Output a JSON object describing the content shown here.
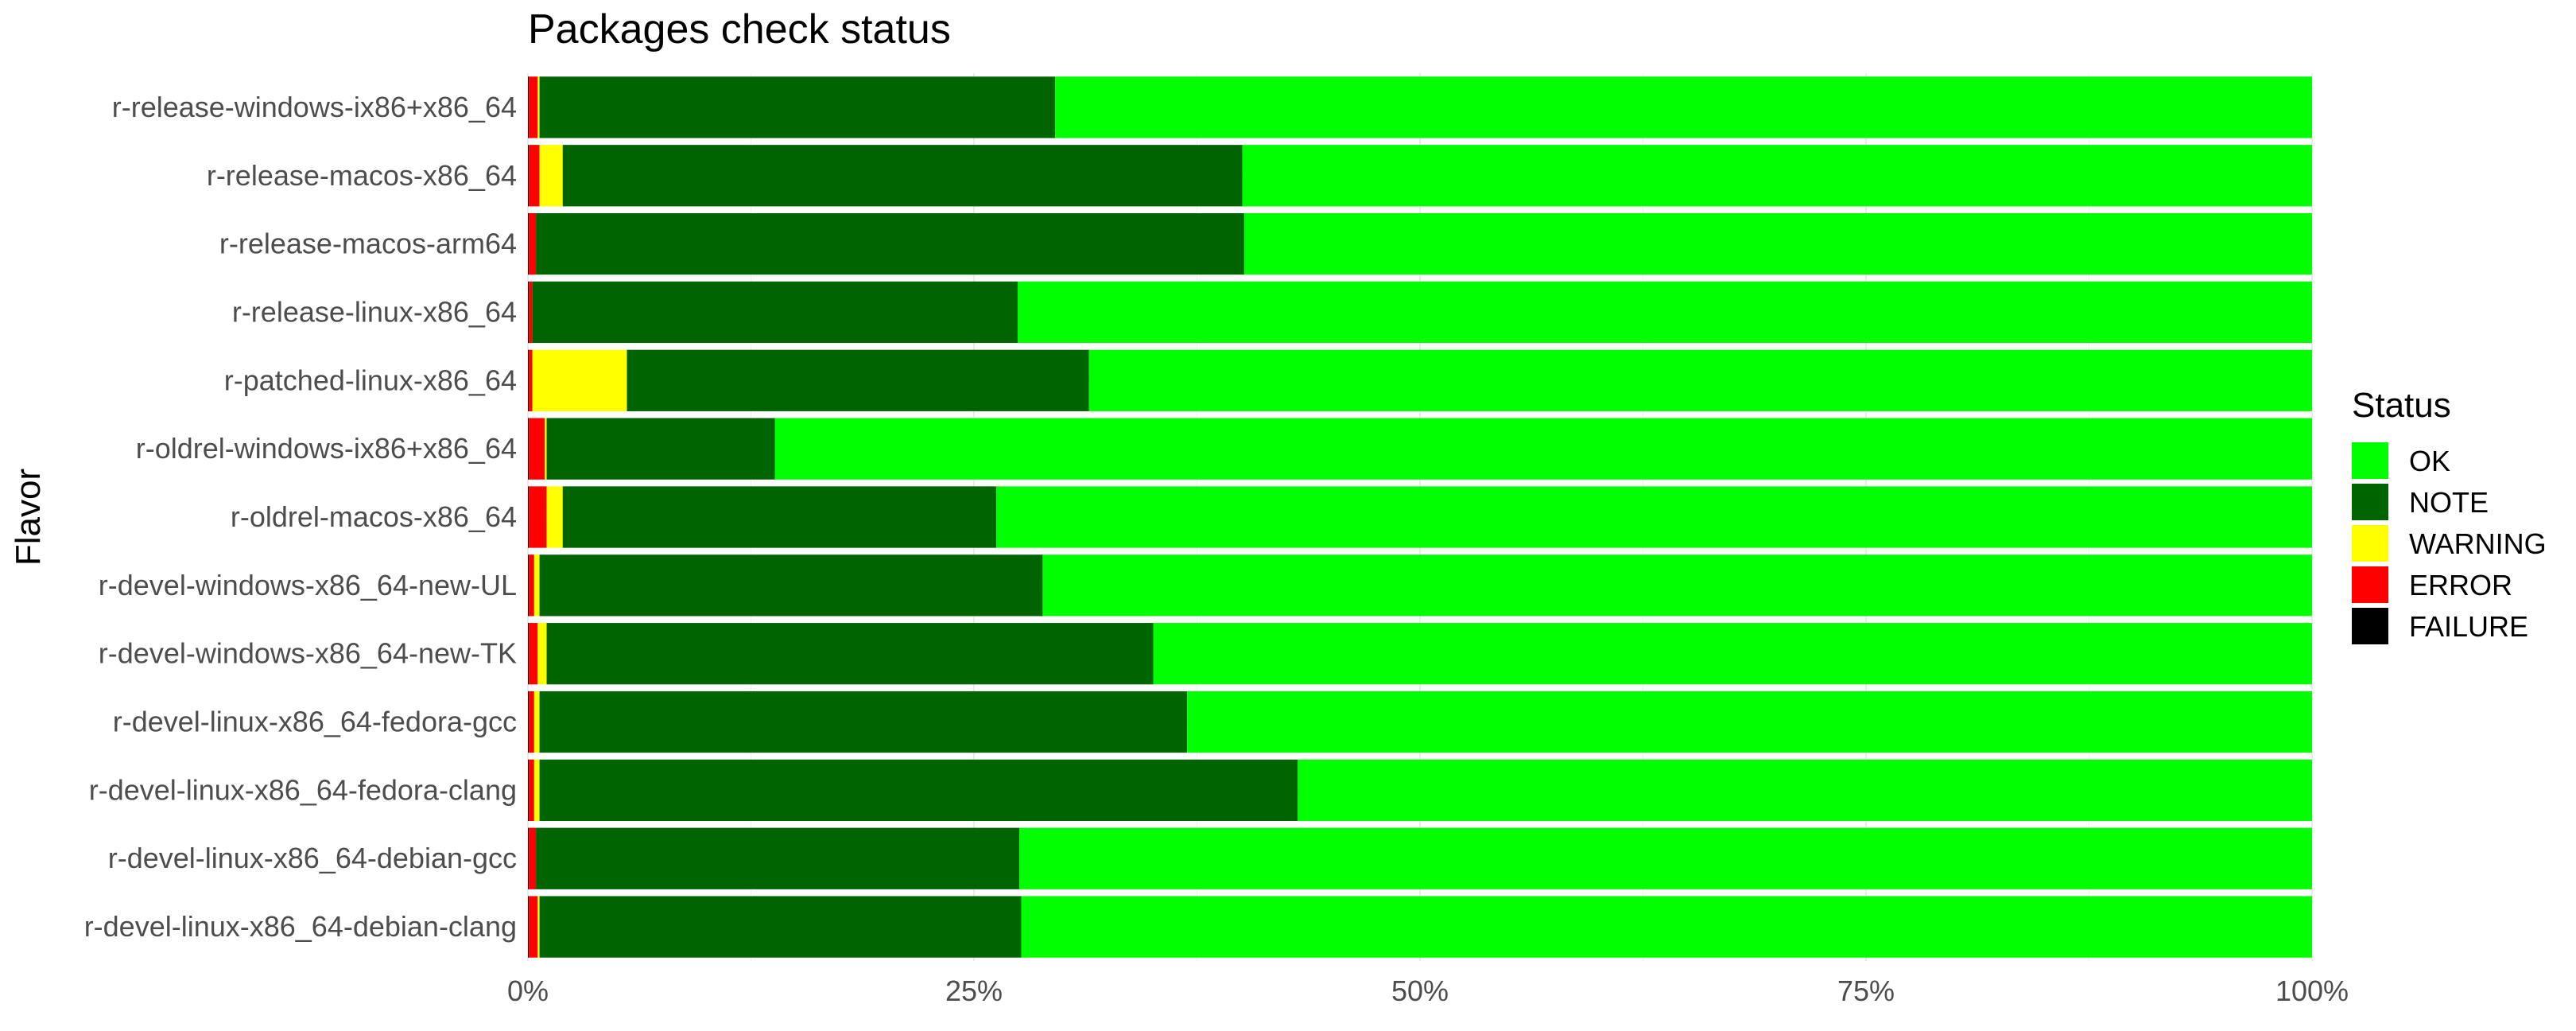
{
  "chart_data": {
    "type": "bar",
    "orientation": "horizontal",
    "stacked": true,
    "title": "Packages check status",
    "xlabel": "",
    "ylabel": "Flavor",
    "xlim": [
      0,
      100
    ],
    "x_ticks": [
      "0%",
      "25%",
      "50%",
      "75%",
      "100%"
    ],
    "grid": true,
    "legend": {
      "title": "Status",
      "position": "right"
    },
    "categories": [
      "r-release-windows-ix86+x86_64",
      "r-release-macos-x86_64",
      "r-release-macos-arm64",
      "r-release-linux-x86_64",
      "r-patched-linux-x86_64",
      "r-oldrel-windows-ix86+x86_64",
      "r-oldrel-macos-x86_64",
      "r-devel-windows-x86_64-new-UL",
      "r-devel-windows-x86_64-new-TK",
      "r-devel-linux-x86_64-fedora-gcc",
      "r-devel-linux-x86_64-fedora-clang",
      "r-devel-linux-x86_64-debian-gcc",
      "r-devel-linux-x86_64-debian-clang"
    ],
    "series": [
      {
        "name": "FAILURE",
        "color": "#000000",
        "values": [
          0.05,
          0.05,
          0.05,
          0.05,
          0.05,
          0.05,
          0.05,
          0.05,
          0.05,
          0.05,
          0.05,
          0.05,
          0.05
        ]
      },
      {
        "name": "ERROR",
        "color": "#ff0000",
        "values": [
          0.5,
          0.6,
          0.4,
          0.2,
          0.2,
          0.9,
          1.0,
          0.3,
          0.5,
          0.3,
          0.3,
          0.4,
          0.5
        ]
      },
      {
        "name": "WARNING",
        "color": "#ffff00",
        "values": [
          0.1,
          1.3,
          0.0,
          0.0,
          5.3,
          0.1,
          0.9,
          0.3,
          0.5,
          0.3,
          0.3,
          0.0,
          0.1
        ]
      },
      {
        "name": "NOTE",
        "color": "#006400",
        "values": [
          28.9,
          38.1,
          39.7,
          27.2,
          25.9,
          12.8,
          24.3,
          28.2,
          34.0,
          36.3,
          42.5,
          27.1,
          27.0
        ]
      },
      {
        "name": "OK",
        "color": "#00ff00",
        "values": [
          70.45,
          59.95,
          59.85,
          72.55,
          68.55,
          86.15,
          73.75,
          71.15,
          64.95,
          63.05,
          56.85,
          72.45,
          72.35
        ]
      }
    ],
    "legend_order": [
      "OK",
      "NOTE",
      "WARNING",
      "ERROR",
      "FAILURE"
    ]
  }
}
